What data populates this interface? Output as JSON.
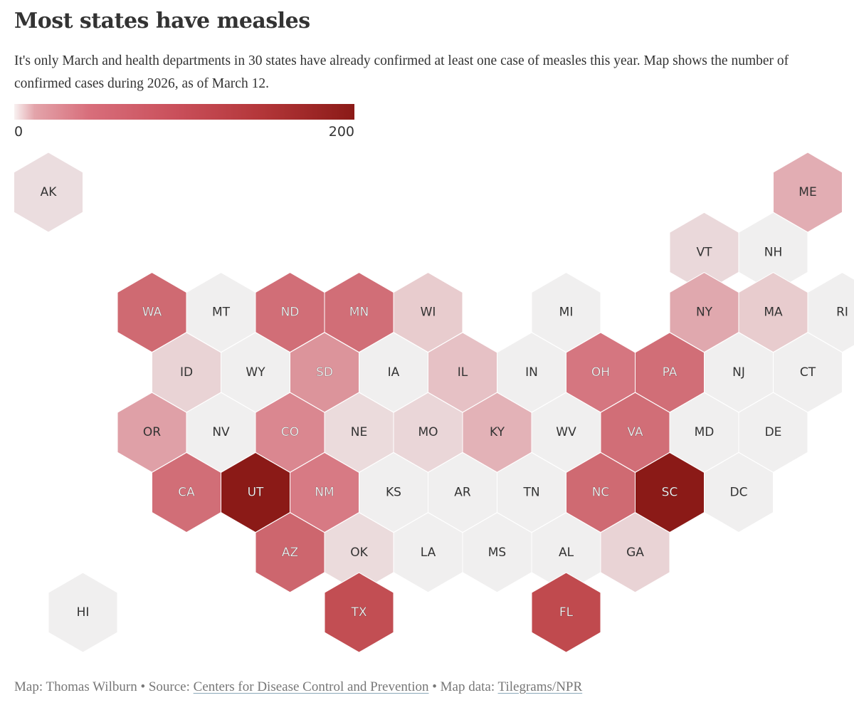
{
  "title": "Most states have measles",
  "subtitle": "It's only March and health departments in 30 states have already confirmed at least one case of measles this year. Map shows the number of confirmed cases during 2026, as of March 12.",
  "legend": {
    "min_label": "0",
    "max_label": "200",
    "colors": {
      "zero": "#f0efef",
      "low": "#ece0e1",
      "mid": "#d77a84",
      "high": "#c04a4e",
      "max": "#8b1a17"
    }
  },
  "chart_data": {
    "type": "hex-tile-map",
    "value_range": [
      0,
      200
    ],
    "states": [
      {
        "abbr": "AK",
        "value": 1,
        "col": 0,
        "row": 0
      },
      {
        "abbr": "ME",
        "value": 20,
        "col": 11,
        "row": 0
      },
      {
        "abbr": "VT",
        "value": 3,
        "col": 9.5,
        "row": 1
      },
      {
        "abbr": "NH",
        "value": 0,
        "col": 10.5,
        "row": 1
      },
      {
        "abbr": "WA",
        "value": 60,
        "col": 1.5,
        "row": 2
      },
      {
        "abbr": "MT",
        "value": 0,
        "col": 2.5,
        "row": 2
      },
      {
        "abbr": "ND",
        "value": 55,
        "col": 3.5,
        "row": 2
      },
      {
        "abbr": "MN",
        "value": 55,
        "col": 4.5,
        "row": 2
      },
      {
        "abbr": "WI",
        "value": 8,
        "col": 5.5,
        "row": 2
      },
      {
        "abbr": "MI",
        "value": 0,
        "col": 7.5,
        "row": 2
      },
      {
        "abbr": "NY",
        "value": 22,
        "col": 9.5,
        "row": 2
      },
      {
        "abbr": "MA",
        "value": 8,
        "col": 10.5,
        "row": 2
      },
      {
        "abbr": "RI",
        "value": 0,
        "col": 11.5,
        "row": 2
      },
      {
        "abbr": "ID",
        "value": 5,
        "col": 2,
        "row": 3
      },
      {
        "abbr": "WY",
        "value": 0,
        "col": 3,
        "row": 3
      },
      {
        "abbr": "SD",
        "value": 30,
        "col": 4,
        "row": 3
      },
      {
        "abbr": "IA",
        "value": 0,
        "col": 5,
        "row": 3
      },
      {
        "abbr": "IL",
        "value": 12,
        "col": 6,
        "row": 3
      },
      {
        "abbr": "IN",
        "value": 0,
        "col": 7,
        "row": 3
      },
      {
        "abbr": "OH",
        "value": 45,
        "col": 8,
        "row": 3
      },
      {
        "abbr": "PA",
        "value": 55,
        "col": 9,
        "row": 3
      },
      {
        "abbr": "NJ",
        "value": 0,
        "col": 10,
        "row": 3
      },
      {
        "abbr": "CT",
        "value": 0,
        "col": 11,
        "row": 3
      },
      {
        "abbr": "OR",
        "value": 25,
        "col": 1.5,
        "row": 4
      },
      {
        "abbr": "NV",
        "value": 0,
        "col": 2.5,
        "row": 4
      },
      {
        "abbr": "CO",
        "value": 35,
        "col": 3.5,
        "row": 4
      },
      {
        "abbr": "NE",
        "value": 2,
        "col": 4.5,
        "row": 4
      },
      {
        "abbr": "MO",
        "value": 4,
        "col": 5.5,
        "row": 4
      },
      {
        "abbr": "KY",
        "value": 18,
        "col": 6.5,
        "row": 4
      },
      {
        "abbr": "WV",
        "value": 0,
        "col": 7.5,
        "row": 4
      },
      {
        "abbr": "VA",
        "value": 55,
        "col": 8.5,
        "row": 4
      },
      {
        "abbr": "MD",
        "value": 0,
        "col": 9.5,
        "row": 4
      },
      {
        "abbr": "DE",
        "value": 0,
        "col": 10.5,
        "row": 4
      },
      {
        "abbr": "CA",
        "value": 55,
        "col": 2,
        "row": 5
      },
      {
        "abbr": "UT",
        "value": 200,
        "col": 3,
        "row": 5
      },
      {
        "abbr": "NM",
        "value": 40,
        "col": 4,
        "row": 5
      },
      {
        "abbr": "KS",
        "value": 0,
        "col": 5,
        "row": 5
      },
      {
        "abbr": "AR",
        "value": 0,
        "col": 6,
        "row": 5
      },
      {
        "abbr": "TN",
        "value": 0,
        "col": 7,
        "row": 5
      },
      {
        "abbr": "NC",
        "value": 60,
        "col": 8,
        "row": 5
      },
      {
        "abbr": "SC",
        "value": 200,
        "col": 9,
        "row": 5
      },
      {
        "abbr": "DC",
        "value": 0,
        "col": 10,
        "row": 5
      },
      {
        "abbr": "AZ",
        "value": 65,
        "col": 3.5,
        "row": 6
      },
      {
        "abbr": "OK",
        "value": 2,
        "col": 4.5,
        "row": 6
      },
      {
        "abbr": "LA",
        "value": 0,
        "col": 5.5,
        "row": 6
      },
      {
        "abbr": "MS",
        "value": 0,
        "col": 6.5,
        "row": 6
      },
      {
        "abbr": "AL",
        "value": 0,
        "col": 7.5,
        "row": 6
      },
      {
        "abbr": "GA",
        "value": 5,
        "col": 8.5,
        "row": 6
      },
      {
        "abbr": "HI",
        "value": 0,
        "col": 0.5,
        "row": 7
      },
      {
        "abbr": "TX",
        "value": 95,
        "col": 4.5,
        "row": 7
      },
      {
        "abbr": "FL",
        "value": 100,
        "col": 7.5,
        "row": 7
      }
    ]
  },
  "source": {
    "prefix": "Map: Thomas Wilburn • Source: ",
    "source_link": "Centers for Disease Control and Prevention",
    "mid": " • Map data: ",
    "data_link": "Tilegrams/NPR"
  }
}
